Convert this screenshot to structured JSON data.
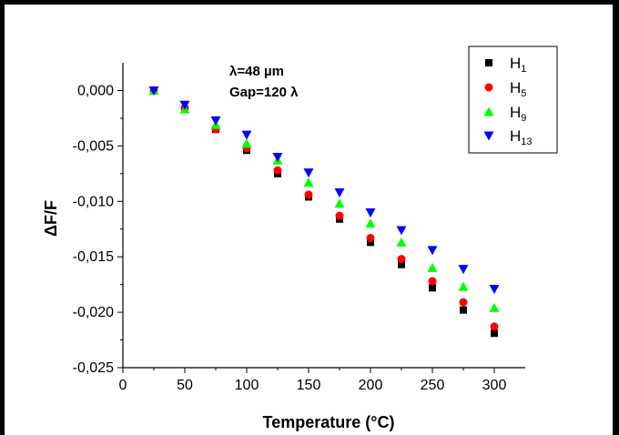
{
  "chart_data": {
    "type": "scatter",
    "title": "",
    "xlabel": "Temperature (°C)",
    "ylabel_prefix": "Δ",
    "ylabel_main": "F/F",
    "xlim": [
      0,
      325
    ],
    "ylim": [
      -0.025,
      0.0025
    ],
    "xticks": [
      0,
      50,
      100,
      150,
      200,
      250,
      300
    ],
    "yticks": [
      0.0,
      -0.005,
      -0.01,
      -0.015,
      -0.02,
      -0.025
    ],
    "xtick_labels": [
      "0",
      "50",
      "100",
      "150",
      "200",
      "250",
      "300"
    ],
    "ytick_labels": [
      "0,000",
      "-0,005",
      "-0,010",
      "-0,015",
      "-0,020",
      "-0,025"
    ],
    "annotations": [
      "λ=48 µm",
      "Gap=120 λ"
    ],
    "legend_position": "top-right",
    "x": [
      25,
      50,
      75,
      100,
      125,
      150,
      175,
      200,
      225,
      250,
      275,
      300
    ],
    "series": [
      {
        "name": "H",
        "sub": "1",
        "marker": "square",
        "color": "#000000",
        "values": [
          0.0,
          -0.0017,
          -0.0035,
          -0.0054,
          -0.0075,
          -0.0096,
          -0.0116,
          -0.0137,
          -0.0157,
          -0.0178,
          -0.0198,
          -0.0219
        ]
      },
      {
        "name": "H",
        "sub": "5",
        "marker": "circle",
        "color": "#ff0000",
        "values": [
          0.0,
          -0.0016,
          -0.0035,
          -0.0052,
          -0.0072,
          -0.0094,
          -0.0113,
          -0.0133,
          -0.0152,
          -0.0172,
          -0.0191,
          -0.0213
        ]
      },
      {
        "name": "H",
        "sub": "9",
        "marker": "triangle-up",
        "color": "#00ff00",
        "values": [
          0.0,
          -0.0017,
          -0.0031,
          -0.0048,
          -0.0063,
          -0.0083,
          -0.0102,
          -0.012,
          -0.0137,
          -0.016,
          -0.0177,
          -0.0196
        ]
      },
      {
        "name": "H",
        "sub": "13",
        "marker": "triangle-down",
        "color": "#0000ff",
        "values": [
          0.0,
          -0.0013,
          -0.0027,
          -0.004,
          -0.006,
          -0.0074,
          -0.0092,
          -0.011,
          -0.0126,
          -0.0144,
          -0.0161,
          -0.0179
        ]
      }
    ]
  }
}
